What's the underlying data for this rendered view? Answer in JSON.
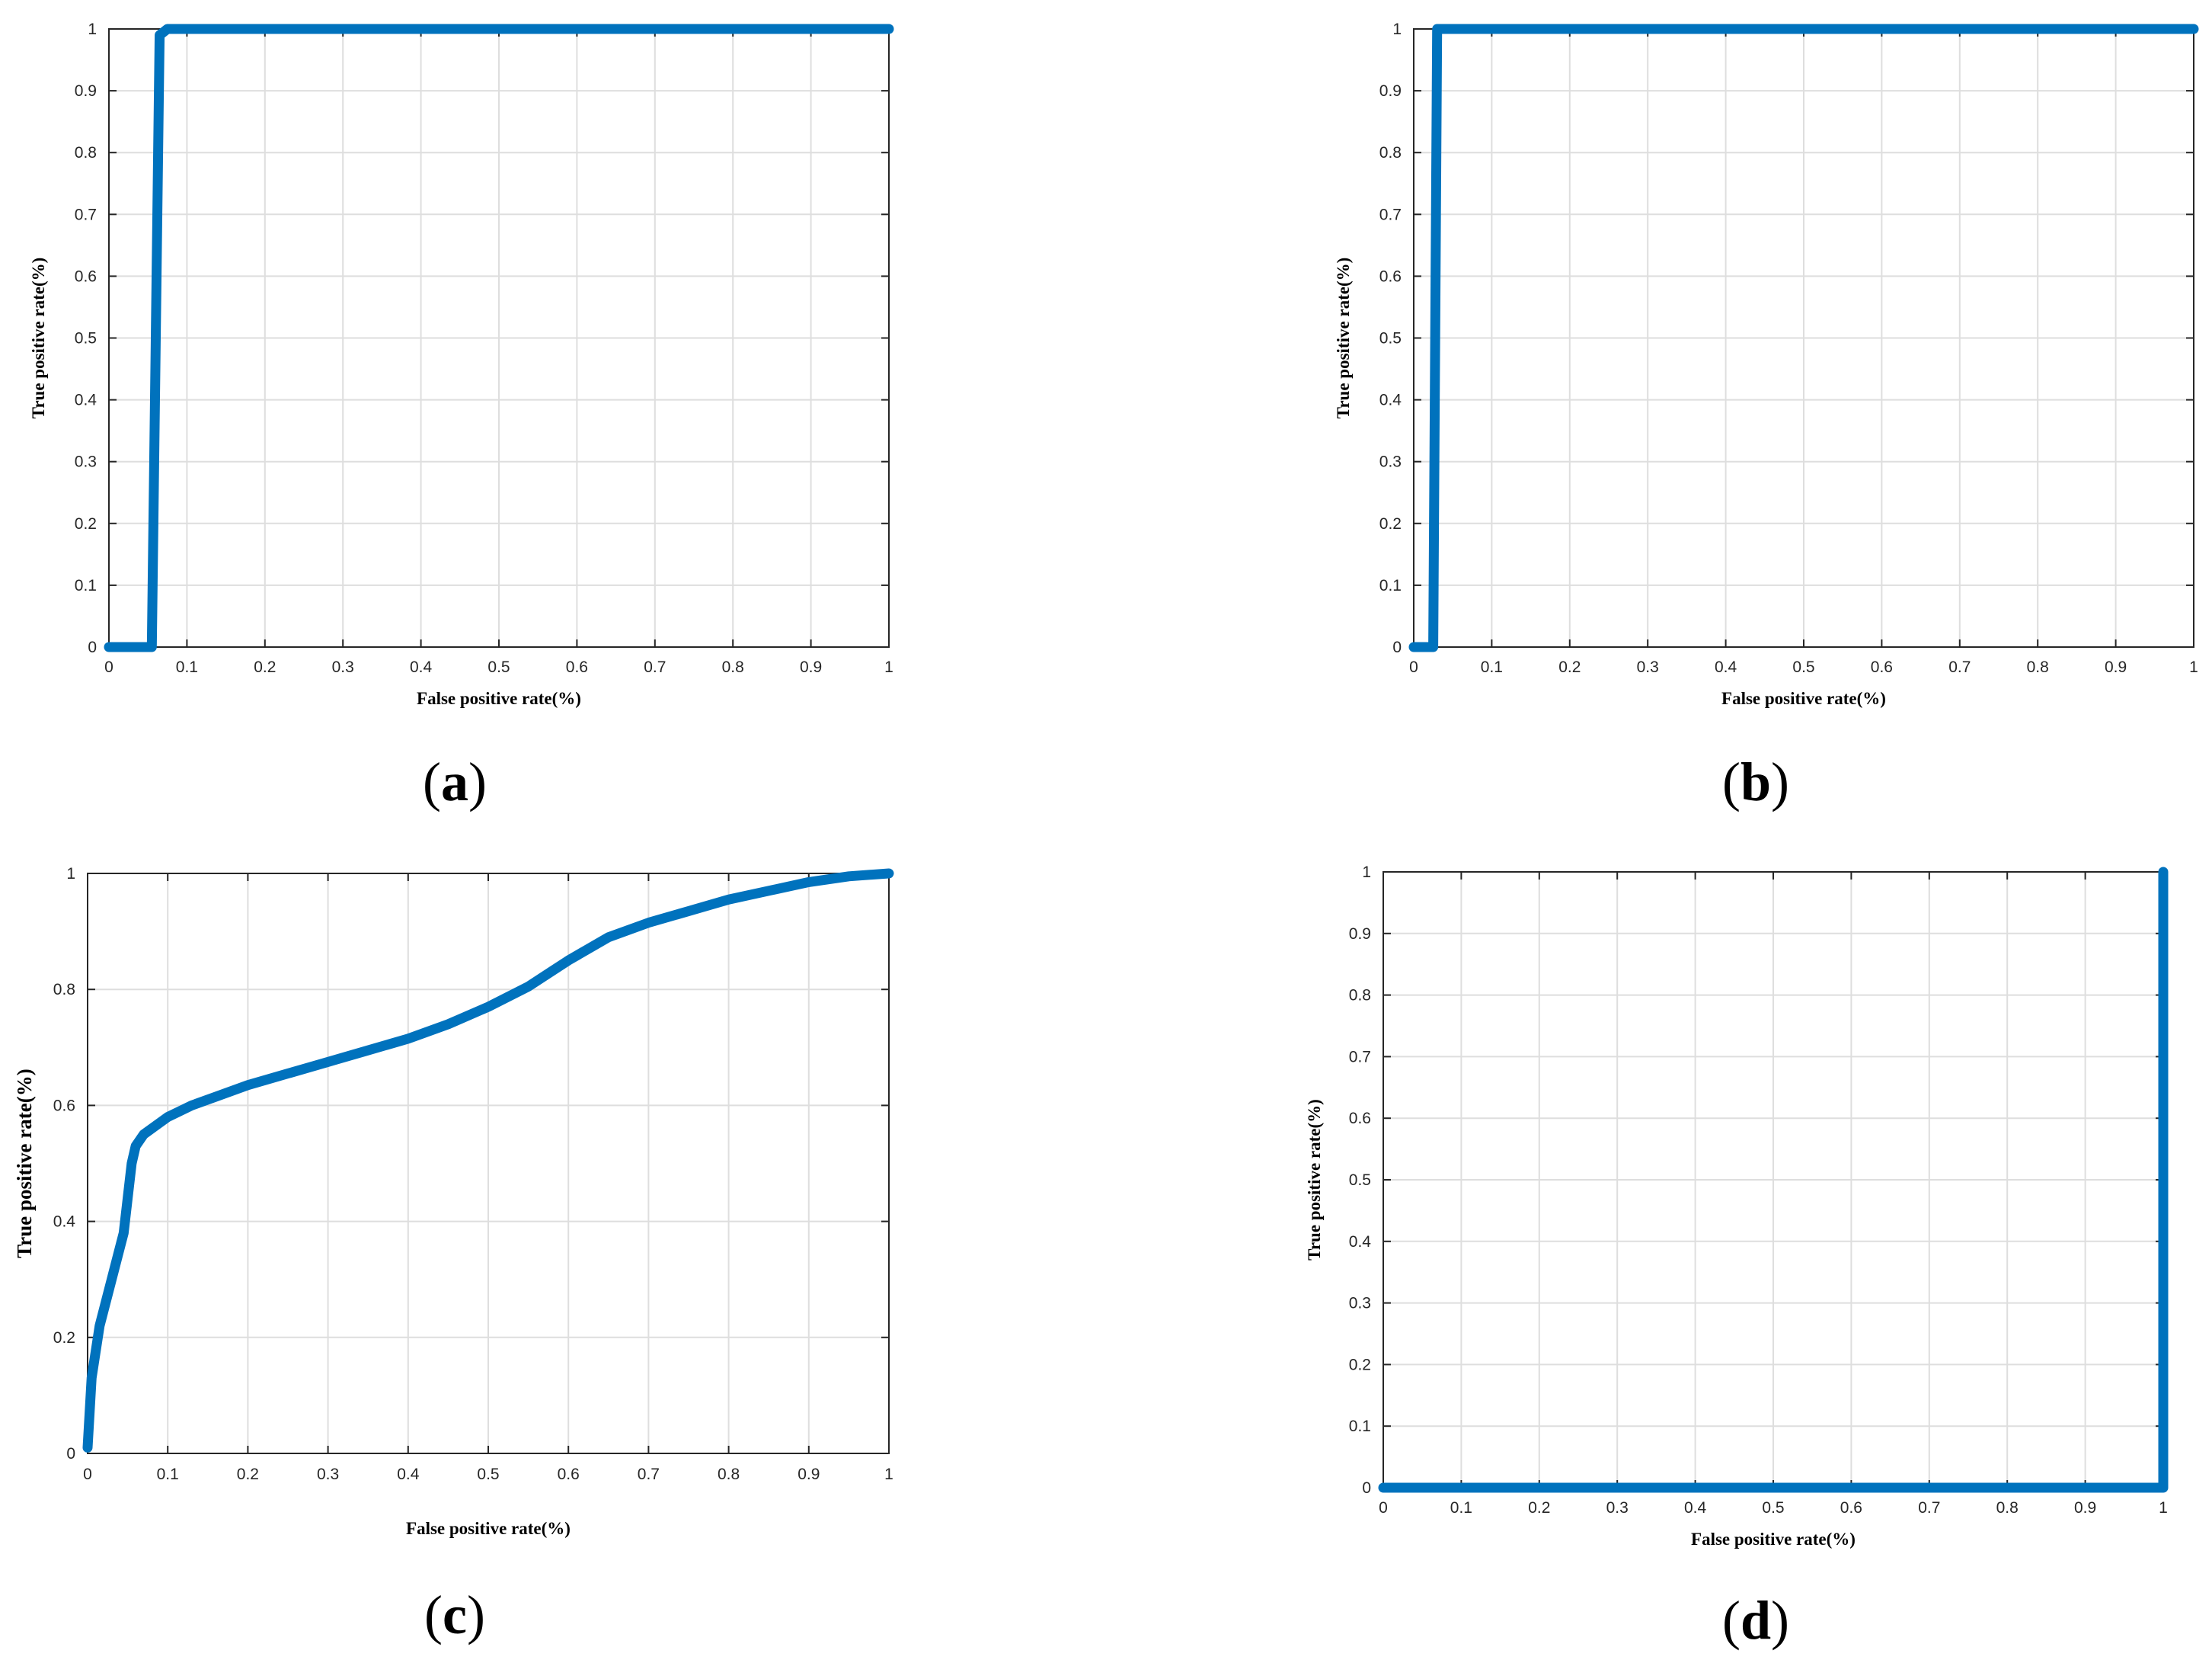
{
  "colors": {
    "series": "#0072BD",
    "grid": "#dedede",
    "axis": "#262626"
  },
  "chart_data": [
    {
      "panel": "a",
      "caption": "a",
      "type": "line",
      "xlabel": "False positive rate(%)",
      "ylabel": "True positive rate(%)",
      "xlim": [
        0,
        1
      ],
      "ylim": [
        0,
        1
      ],
      "xticks": [
        "0",
        "0.1",
        "0.2",
        "0.3",
        "0.4",
        "0.5",
        "0.6",
        "0.7",
        "0.8",
        "0.9",
        "1"
      ],
      "yticks": [
        "0",
        "0.1",
        "0.2",
        "0.3",
        "0.4",
        "0.5",
        "0.6",
        "0.7",
        "0.8",
        "0.9",
        "1"
      ],
      "grid": true,
      "series": [
        {
          "x": [
            0,
            0.055,
            0.065,
            0.075,
            1
          ],
          "y": [
            0,
            0,
            0.99,
            1,
            1
          ]
        }
      ]
    },
    {
      "panel": "b",
      "caption": "b",
      "type": "line",
      "xlabel": "False positive rate(%)",
      "ylabel": "True positive rate(%)",
      "xlim": [
        0,
        1
      ],
      "ylim": [
        0,
        1
      ],
      "xticks": [
        "0",
        "0.1",
        "0.2",
        "0.3",
        "0.4",
        "0.5",
        "0.6",
        "0.7",
        "0.8",
        "0.9",
        "1"
      ],
      "yticks": [
        "0",
        "0.1",
        "0.2",
        "0.3",
        "0.4",
        "0.5",
        "0.6",
        "0.7",
        "0.8",
        "0.9",
        "1"
      ],
      "grid": true,
      "series": [
        {
          "x": [
            0,
            0.025,
            0.03,
            1
          ],
          "y": [
            0,
            0,
            1,
            1
          ]
        }
      ]
    },
    {
      "panel": "c",
      "caption": "c",
      "type": "line",
      "xlabel": "False positive rate(%)",
      "ylabel": "True positive rate(%)",
      "xlim": [
        0,
        1
      ],
      "ylim": [
        0,
        1
      ],
      "xticks": [
        "0",
        "0.1",
        "0.2",
        "0.3",
        "0.4",
        "0.5",
        "0.6",
        "0.7",
        "0.8",
        "0.9",
        "1"
      ],
      "yticks": [
        "0",
        "0.2",
        "0.4",
        "0.6",
        "0.8",
        "1"
      ],
      "grid": true,
      "series": [
        {
          "x": [
            0,
            0.005,
            0.015,
            0.03,
            0.045,
            0.05,
            0.055,
            0.06,
            0.07,
            0.085,
            0.1,
            0.13,
            0.16,
            0.2,
            0.25,
            0.3,
            0.35,
            0.4,
            0.45,
            0.5,
            0.55,
            0.6,
            0.65,
            0.7,
            0.75,
            0.8,
            0.85,
            0.9,
            0.95,
            1
          ],
          "y": [
            0.01,
            0.13,
            0.22,
            0.3,
            0.38,
            0.44,
            0.5,
            0.53,
            0.55,
            0.565,
            0.58,
            0.6,
            0.615,
            0.635,
            0.655,
            0.675,
            0.695,
            0.715,
            0.74,
            0.77,
            0.805,
            0.85,
            0.89,
            0.915,
            0.935,
            0.955,
            0.97,
            0.985,
            0.995,
            1
          ]
        }
      ]
    },
    {
      "panel": "d",
      "caption": "d",
      "type": "line",
      "xlabel": "False positive rate(%)",
      "ylabel": "True positive rate(%)",
      "xlim": [
        0,
        1
      ],
      "ylim": [
        0,
        1
      ],
      "xticks": [
        "0",
        "0.1",
        "0.2",
        "0.3",
        "0.4",
        "0.5",
        "0.6",
        "0.7",
        "0.8",
        "0.9",
        "1"
      ],
      "yticks": [
        "0",
        "0.1",
        "0.2",
        "0.3",
        "0.4",
        "0.5",
        "0.6",
        "0.7",
        "0.8",
        "0.9",
        "1"
      ],
      "grid": true,
      "series": [
        {
          "x": [
            0,
            1,
            1
          ],
          "y": [
            0,
            0,
            1
          ]
        }
      ]
    }
  ]
}
